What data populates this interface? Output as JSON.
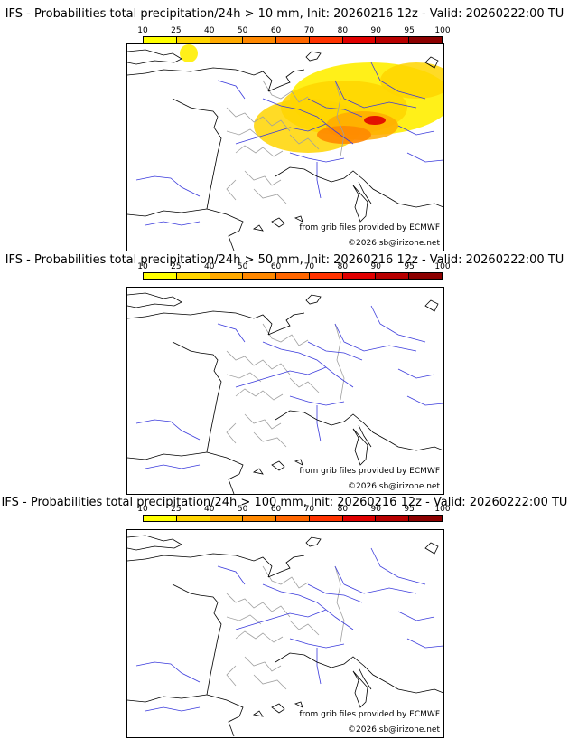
{
  "colorbar": {
    "ticks": [
      "10",
      "25",
      "40",
      "50",
      "60",
      "70",
      "80",
      "90",
      "95",
      "100"
    ],
    "colors": [
      "#ffff00",
      "#ffd500",
      "#ffaa00",
      "#ff8800",
      "#ff6600",
      "#ff3300",
      "#e00000",
      "#b80000",
      "#8c0000",
      "#5a0000"
    ]
  },
  "panels": [
    {
      "title": "IFS - Probabilities total precipitation/24h > 10 mm, Init: 20260216 12z - Valid: 20260222:00 TU",
      "source": "from grib files provided by ECMWF",
      "copyright": "©2026 sb@irizone.net"
    },
    {
      "title": "IFS - Probabilities total precipitation/24h > 50 mm, Init: 20260216 12z - Valid: 20260222:00 TU",
      "source": "from grib files provided by ECMWF",
      "copyright": "©2026 sb@irizone.net"
    },
    {
      "title": "IFS - Probabilities total precipitation/24h > 100 mm, Init: 20260216 12z - Valid: 20260222:00 TU",
      "source": "from grib files provided by ECMWF",
      "copyright": "©2026 sb@irizone.net"
    }
  ],
  "style": {
    "coast_color": "#000000",
    "river_color": "#3b3bdc",
    "border_color": "#a0a0a0"
  }
}
